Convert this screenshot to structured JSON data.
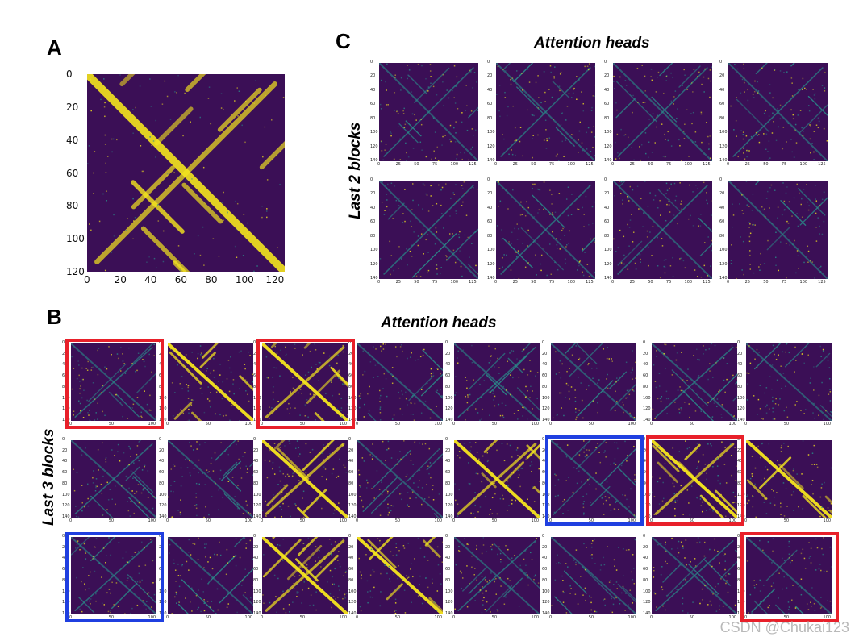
{
  "panel_a": {
    "letter": "A",
    "x_ticks": [
      "0",
      "20",
      "40",
      "60",
      "80",
      "100",
      "120"
    ],
    "y_ticks": [
      "0",
      "20",
      "40",
      "60",
      "80",
      "100",
      "120"
    ]
  },
  "panel_b": {
    "letter": "B",
    "title": "Attention heads",
    "row_label": "Last 3 blocks",
    "y_ticks": [
      "0",
      "20",
      "40",
      "60",
      "80",
      "100",
      "120",
      "140"
    ],
    "x_ticks": [
      "0",
      "50",
      "100"
    ],
    "highlights": [
      {
        "row": 0,
        "col": 0,
        "color": "#e8202a"
      },
      {
        "row": 0,
        "col": 2,
        "color": "#e8202a"
      },
      {
        "row": 1,
        "col": 5,
        "color": "#1f3fe0"
      },
      {
        "row": 1,
        "col": 6,
        "color": "#e8202a"
      },
      {
        "row": 2,
        "col": 0,
        "color": "#1f3fe0"
      },
      {
        "row": 2,
        "col": 7,
        "color": "#e8202a"
      }
    ]
  },
  "panel_c": {
    "letter": "C",
    "title": "Attention heads",
    "row_label": "Last 2 blocks",
    "y_ticks": [
      "0",
      "20",
      "40",
      "60",
      "80",
      "100",
      "120",
      "140"
    ],
    "x_ticks": [
      "0",
      "25",
      "50",
      "75",
      "100",
      "125"
    ]
  },
  "colors": {
    "background_map": "#3b0f56",
    "contact": "#f5e61e",
    "mid": "#2a8c8a"
  },
  "watermark": "CSDN @Chukai123"
}
